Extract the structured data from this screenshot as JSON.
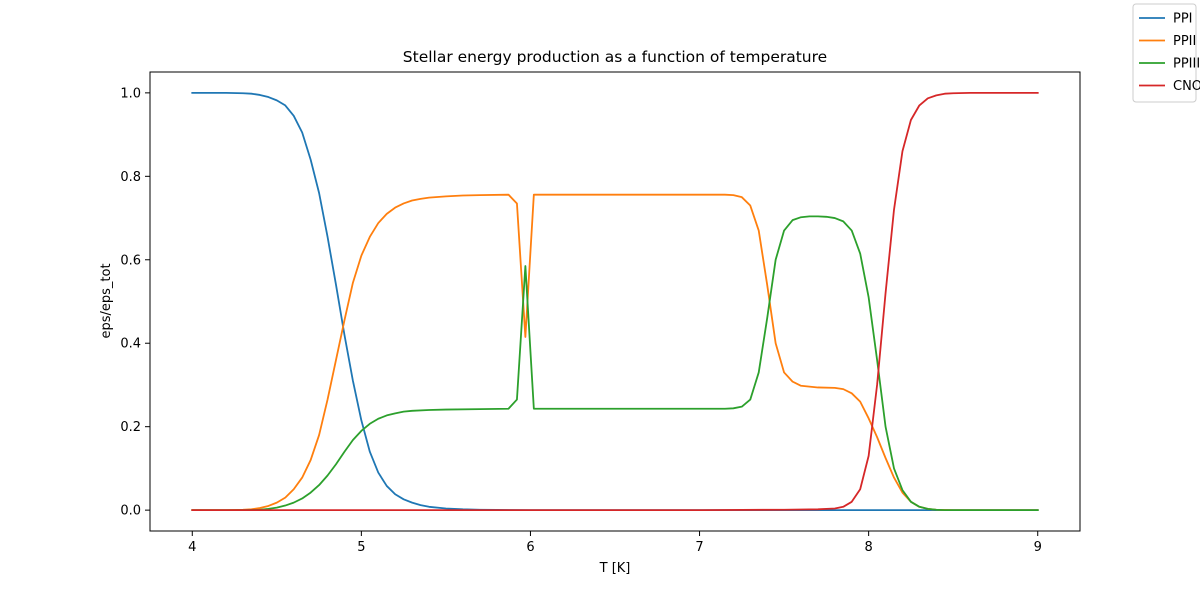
{
  "chart_data": {
    "type": "line",
    "title": "Stellar energy production as a function of temperature",
    "xlabel": "T [K]",
    "ylabel": "eps/eps_tot",
    "xlim": [
      3.75,
      9.25
    ],
    "ylim": [
      -0.05,
      1.05
    ],
    "xticks": [
      4,
      5,
      6,
      7,
      8,
      9
    ],
    "xtick_labels": [
      "4",
      "5",
      "6",
      "7",
      "8",
      "9"
    ],
    "yticks": [
      0.0,
      0.2,
      0.4,
      0.6,
      0.8,
      1.0
    ],
    "ytick_labels": [
      "0.0",
      "0.2",
      "0.4",
      "0.6",
      "0.8",
      "1.0"
    ],
    "grid": false,
    "legend_position": "top-right outside",
    "series": [
      {
        "name": "PPI",
        "color": "#1f77b4",
        "x": [
          4.0,
          4.2,
          4.3,
          4.35,
          4.4,
          4.45,
          4.5,
          4.55,
          4.6,
          4.65,
          4.7,
          4.75,
          4.8,
          4.85,
          4.9,
          4.95,
          5.0,
          5.05,
          5.1,
          5.15,
          5.2,
          5.25,
          5.3,
          5.35,
          5.4,
          5.5,
          5.6,
          5.7,
          5.8,
          6.0,
          7.0,
          8.0,
          9.0
        ],
        "y": [
          1.0,
          1.0,
          0.999,
          0.998,
          0.995,
          0.99,
          0.982,
          0.97,
          0.945,
          0.905,
          0.84,
          0.76,
          0.655,
          0.54,
          0.42,
          0.31,
          0.215,
          0.14,
          0.09,
          0.058,
          0.038,
          0.026,
          0.018,
          0.012,
          0.008,
          0.004,
          0.002,
          0.001,
          0.0005,
          0.0,
          0.0,
          0.0,
          0.0
        ]
      },
      {
        "name": "PPII",
        "color": "#ff7f0e",
        "x": [
          4.0,
          4.2,
          4.3,
          4.35,
          4.4,
          4.45,
          4.5,
          4.55,
          4.6,
          4.65,
          4.7,
          4.75,
          4.8,
          4.85,
          4.9,
          4.95,
          5.0,
          5.05,
          5.1,
          5.15,
          5.2,
          5.25,
          5.3,
          5.35,
          5.4,
          5.5,
          5.6,
          5.7,
          5.87,
          5.92,
          5.97,
          6.02,
          6.5,
          7.15,
          7.2,
          7.25,
          7.3,
          7.35,
          7.4,
          7.45,
          7.5,
          7.55,
          7.6,
          7.7,
          7.8,
          7.85,
          7.9,
          7.95,
          8.0,
          8.05,
          8.1,
          8.15,
          8.2,
          8.25,
          8.3,
          8.35,
          8.4,
          8.5,
          9.0
        ],
        "y": [
          0.0,
          0.0,
          0.001,
          0.002,
          0.005,
          0.01,
          0.018,
          0.03,
          0.05,
          0.078,
          0.12,
          0.18,
          0.265,
          0.36,
          0.455,
          0.545,
          0.61,
          0.655,
          0.688,
          0.71,
          0.725,
          0.735,
          0.742,
          0.746,
          0.749,
          0.752,
          0.754,
          0.755,
          0.756,
          0.735,
          0.415,
          0.756,
          0.756,
          0.756,
          0.755,
          0.75,
          0.73,
          0.67,
          0.54,
          0.4,
          0.33,
          0.308,
          0.298,
          0.294,
          0.293,
          0.29,
          0.28,
          0.26,
          0.22,
          0.175,
          0.125,
          0.078,
          0.042,
          0.02,
          0.008,
          0.003,
          0.001,
          0.0,
          0.0
        ]
      },
      {
        "name": "PPIII",
        "color": "#2ca02c",
        "x": [
          4.0,
          4.3,
          4.4,
          4.45,
          4.5,
          4.55,
          4.6,
          4.65,
          4.7,
          4.75,
          4.8,
          4.85,
          4.9,
          4.95,
          5.0,
          5.05,
          5.1,
          5.15,
          5.2,
          5.25,
          5.3,
          5.4,
          5.5,
          5.7,
          5.87,
          5.92,
          5.97,
          6.02,
          6.5,
          7.15,
          7.2,
          7.25,
          7.3,
          7.35,
          7.4,
          7.45,
          7.5,
          7.55,
          7.6,
          7.65,
          7.7,
          7.75,
          7.8,
          7.85,
          7.9,
          7.95,
          8.0,
          8.05,
          8.1,
          8.15,
          8.2,
          8.25,
          8.3,
          8.35,
          8.4,
          8.45,
          8.5,
          9.0
        ],
        "y": [
          0.0,
          0.0,
          0.001,
          0.003,
          0.006,
          0.011,
          0.018,
          0.028,
          0.042,
          0.06,
          0.083,
          0.11,
          0.14,
          0.168,
          0.19,
          0.207,
          0.219,
          0.227,
          0.232,
          0.236,
          0.238,
          0.24,
          0.241,
          0.242,
          0.243,
          0.265,
          0.585,
          0.243,
          0.243,
          0.243,
          0.244,
          0.248,
          0.265,
          0.33,
          0.46,
          0.6,
          0.67,
          0.695,
          0.702,
          0.704,
          0.704,
          0.703,
          0.7,
          0.692,
          0.67,
          0.615,
          0.51,
          0.36,
          0.2,
          0.1,
          0.048,
          0.02,
          0.008,
          0.003,
          0.001,
          0.0,
          0.0,
          0.0
        ]
      },
      {
        "name": "CNO",
        "color": "#d62728",
        "x": [
          4.0,
          7.0,
          7.5,
          7.7,
          7.75,
          7.8,
          7.85,
          7.9,
          7.95,
          8.0,
          8.05,
          8.1,
          8.15,
          8.2,
          8.25,
          8.3,
          8.35,
          8.4,
          8.45,
          8.5,
          8.6,
          9.0
        ],
        "y": [
          0.0,
          0.0,
          0.001,
          0.002,
          0.003,
          0.004,
          0.008,
          0.02,
          0.05,
          0.13,
          0.3,
          0.52,
          0.72,
          0.86,
          0.935,
          0.97,
          0.987,
          0.994,
          0.998,
          0.999,
          1.0,
          1.0
        ]
      }
    ]
  }
}
